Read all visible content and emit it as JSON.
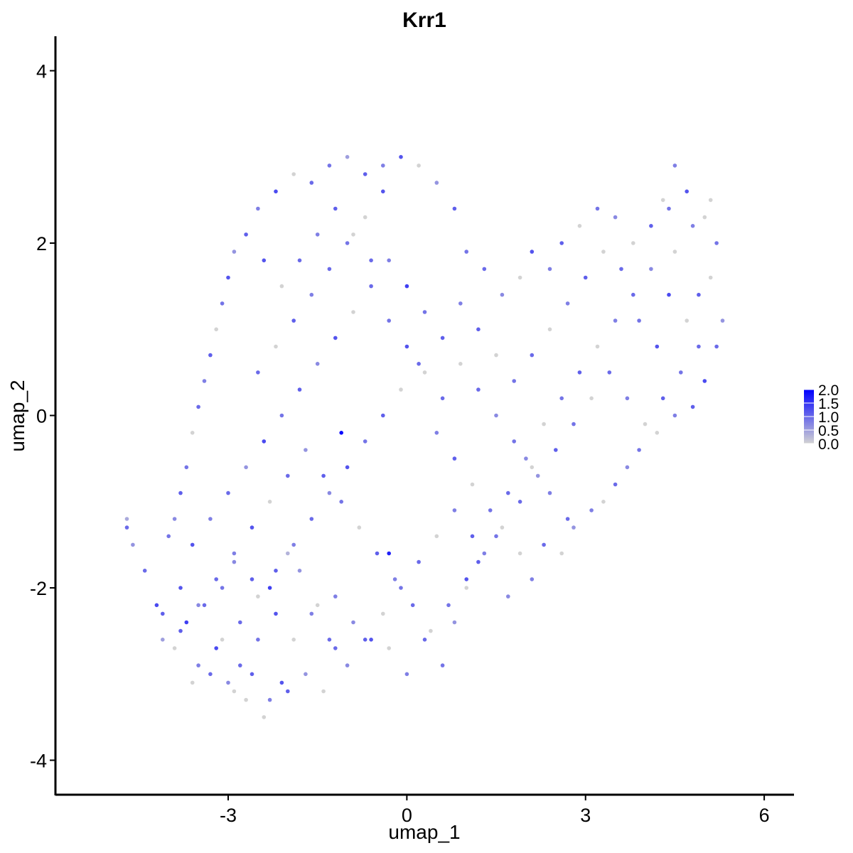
{
  "chart_data": {
    "type": "scatter",
    "title": "Krr1",
    "xlabel": "umap_1",
    "ylabel": "umap_2",
    "xlim": [
      -5.9,
      6.5
    ],
    "ylim": [
      -4.4,
      4.4
    ],
    "x_ticks": [
      -3,
      0,
      3,
      6
    ],
    "x_tick_labels": [
      "-3",
      "0",
      "3",
      "6"
    ],
    "y_ticks": [
      -4,
      -2,
      0,
      2,
      4
    ],
    "y_tick_labels": [
      "-4",
      "-2",
      "0",
      "2",
      "4"
    ],
    "grid": false,
    "legend": {
      "placement": "right",
      "type": "colorbar",
      "min": 0.0,
      "max": 2.0,
      "ticks": [
        0.0,
        0.5,
        1.0,
        1.5,
        2.0
      ],
      "tick_labels": [
        "0.0",
        "0.5",
        "1.0",
        "1.5",
        "2.0"
      ],
      "low_color": "#d3d3d3",
      "high_color": "#0000ff"
    },
    "points": [
      [
        -4.7,
        -1.3,
        1.0
      ],
      [
        -4.6,
        -1.5,
        0.6
      ],
      [
        -4.7,
        -1.2,
        0.4
      ],
      [
        -4.4,
        -1.8,
        1.0
      ],
      [
        -4.2,
        -2.2,
        1.3
      ],
      [
        -4.1,
        -2.3,
        1.1
      ],
      [
        -4.0,
        -1.4,
        0.9
      ],
      [
        -4.1,
        -2.6,
        0.5
      ],
      [
        -3.9,
        -2.7,
        0.0
      ],
      [
        -3.7,
        -2.4,
        1.4
      ],
      [
        -3.8,
        -2.0,
        1.2
      ],
      [
        -3.5,
        -2.9,
        0.8
      ],
      [
        -3.6,
        -3.1,
        0.0
      ],
      [
        -3.3,
        -3.0,
        1.0
      ],
      [
        -3.2,
        -2.7,
        1.3
      ],
      [
        -3.0,
        -3.1,
        0.7
      ],
      [
        -2.9,
        -3.2,
        0.0
      ],
      [
        -2.7,
        -3.3,
        0.0
      ],
      [
        -2.6,
        -3.0,
        1.1
      ],
      [
        -2.4,
        -3.5,
        0.0
      ],
      [
        -2.3,
        -3.3,
        0.8
      ],
      [
        -2.1,
        -3.1,
        1.2
      ],
      [
        -2.0,
        -3.2,
        1.1
      ],
      [
        -1.7,
        -3.0,
        0.6
      ],
      [
        -1.4,
        -3.2,
        0.0
      ],
      [
        -1.2,
        -2.7,
        1.0
      ],
      [
        -3.4,
        -2.2,
        1.0
      ],
      [
        -3.1,
        -2.0,
        0.9
      ],
      [
        -2.9,
        -1.7,
        0.7
      ],
      [
        -2.6,
        -1.9,
        1.1
      ],
      [
        -2.3,
        -2.0,
        1.4
      ],
      [
        -2.0,
        -1.6,
        0.3
      ],
      [
        -1.8,
        -1.8,
        0.6
      ],
      [
        -1.5,
        -2.2,
        0.0
      ],
      [
        -1.2,
        -2.1,
        0.8
      ],
      [
        -0.9,
        -2.4,
        0.7
      ],
      [
        -0.6,
        -2.6,
        1.2
      ],
      [
        -0.3,
        -2.7,
        0.0
      ],
      [
        0.0,
        -3.0,
        0.8
      ],
      [
        0.3,
        -2.6,
        1.0
      ],
      [
        0.6,
        -2.9,
        0.9
      ],
      [
        0.8,
        -2.4,
        0.6
      ],
      [
        1.0,
        -2.0,
        0.0
      ],
      [
        1.2,
        -1.7,
        1.1
      ],
      [
        1.5,
        -1.4,
        0.9
      ],
      [
        1.7,
        -2.1,
        0.7
      ],
      [
        1.9,
        -1.6,
        0.0
      ],
      [
        2.1,
        -1.9,
        0.8
      ],
      [
        2.3,
        -1.5,
        1.0
      ],
      [
        2.6,
        -1.6,
        0.0
      ],
      [
        2.8,
        -1.3,
        0.6
      ],
      [
        3.1,
        -1.1,
        0.8
      ],
      [
        3.3,
        -1.0,
        0.0
      ],
      [
        3.5,
        -0.8,
        1.0
      ],
      [
        3.7,
        -0.6,
        0.7
      ],
      [
        3.9,
        -0.4,
        0.9
      ],
      [
        4.2,
        -0.2,
        0.0
      ],
      [
        4.5,
        0.0,
        0.8
      ],
      [
        4.8,
        0.1,
        1.1
      ],
      [
        5.0,
        0.4,
        1.3
      ],
      [
        5.2,
        0.8,
        1.0
      ],
      [
        5.3,
        1.1,
        0.6
      ],
      [
        5.1,
        1.6,
        0.0
      ],
      [
        5.2,
        2.0,
        0.9
      ],
      [
        5.0,
        2.3,
        0.0
      ],
      [
        4.7,
        2.6,
        1.2
      ],
      [
        4.5,
        2.9,
        0.8
      ],
      [
        4.3,
        2.5,
        0.0
      ],
      [
        4.1,
        2.2,
        1.1
      ],
      [
        3.8,
        2.0,
        0.0
      ],
      [
        3.5,
        2.3,
        0.7
      ],
      [
        3.2,
        2.4,
        0.9
      ],
      [
        2.9,
        2.2,
        0.0
      ],
      [
        2.6,
        2.0,
        1.1
      ],
      [
        2.4,
        1.7,
        0.8
      ],
      [
        2.1,
        1.9,
        1.2
      ],
      [
        1.9,
        1.6,
        0.0
      ],
      [
        1.6,
        1.4,
        0.7
      ],
      [
        1.3,
        1.7,
        1.0
      ],
      [
        1.0,
        1.9,
        0.9
      ],
      [
        0.8,
        2.4,
        1.1
      ],
      [
        0.5,
        2.7,
        0.6
      ],
      [
        0.2,
        2.9,
        0.0
      ],
      [
        -0.1,
        3.0,
        1.2
      ],
      [
        -0.4,
        2.9,
        0.8
      ],
      [
        -0.7,
        2.8,
        1.1
      ],
      [
        -1.0,
        3.0,
        0.5
      ],
      [
        -1.3,
        2.9,
        0.9
      ],
      [
        -1.6,
        2.7,
        1.0
      ],
      [
        -1.9,
        2.8,
        0.0
      ],
      [
        -2.2,
        2.6,
        1.3
      ],
      [
        -2.5,
        2.4,
        0.8
      ],
      [
        -2.7,
        2.1,
        1.1
      ],
      [
        -2.9,
        1.9,
        0.6
      ],
      [
        -3.0,
        1.6,
        1.2
      ],
      [
        -3.1,
        1.3,
        0.9
      ],
      [
        -3.2,
        1.0,
        0.0
      ],
      [
        -3.3,
        0.7,
        1.1
      ],
      [
        -3.4,
        0.4,
        0.8
      ],
      [
        -3.5,
        0.1,
        1.0
      ],
      [
        -3.6,
        -0.2,
        0.0
      ],
      [
        -3.7,
        -0.6,
        0.9
      ],
      [
        -3.8,
        -0.9,
        1.1
      ],
      [
        -3.9,
        -1.2,
        0.7
      ],
      [
        -3.6,
        -1.5,
        1.2
      ],
      [
        -3.3,
        -1.2,
        0.8
      ],
      [
        -3.0,
        -0.9,
        1.0
      ],
      [
        -2.7,
        -0.6,
        0.6
      ],
      [
        -2.4,
        -0.3,
        1.3
      ],
      [
        -2.1,
        0.0,
        0.9
      ],
      [
        -1.8,
        0.3,
        1.1
      ],
      [
        -1.5,
        0.6,
        0.7
      ],
      [
        -1.2,
        0.9,
        1.2
      ],
      [
        -0.9,
        1.2,
        0.0
      ],
      [
        -0.6,
        1.5,
        1.0
      ],
      [
        -0.3,
        1.8,
        0.8
      ],
      [
        0.0,
        1.5,
        1.4
      ],
      [
        0.3,
        1.2,
        0.9
      ],
      [
        0.6,
        0.9,
        1.1
      ],
      [
        0.9,
        0.6,
        0.0
      ],
      [
        1.2,
        0.3,
        1.0
      ],
      [
        1.5,
        0.0,
        0.7
      ],
      [
        1.8,
        -0.3,
        0.9
      ],
      [
        2.1,
        -0.6,
        0.0
      ],
      [
        2.4,
        -0.9,
        0.8
      ],
      [
        2.7,
        -1.2,
        1.0
      ],
      [
        -1.1,
        -0.2,
        1.9
      ],
      [
        -0.3,
        -1.6,
        1.7
      ],
      [
        -2.5,
        0.5,
        1.0
      ],
      [
        -2.2,
        0.8,
        0.0
      ],
      [
        -1.9,
        1.1,
        1.1
      ],
      [
        -1.6,
        1.4,
        0.8
      ],
      [
        -1.3,
        1.7,
        1.0
      ],
      [
        -1.0,
        2.0,
        0.9
      ],
      [
        -0.7,
        2.3,
        0.0
      ],
      [
        -0.4,
        2.6,
        1.2
      ],
      [
        -2.8,
        -2.4,
        1.0
      ],
      [
        -2.5,
        -2.1,
        0.0
      ],
      [
        -2.2,
        -1.8,
        1.1
      ],
      [
        -1.9,
        -1.5,
        0.8
      ],
      [
        -1.6,
        -1.2,
        1.0
      ],
      [
        -1.3,
        -0.9,
        0.7
      ],
      [
        -1.0,
        -0.6,
        1.2
      ],
      [
        -0.7,
        -0.3,
        0.9
      ],
      [
        -0.4,
        0.0,
        1.1
      ],
      [
        -0.1,
        0.3,
        0.0
      ],
      [
        0.2,
        0.6,
        1.0
      ],
      [
        0.5,
        -0.2,
        0.8
      ],
      [
        0.8,
        -0.5,
        1.1
      ],
      [
        1.1,
        -0.8,
        0.0
      ],
      [
        1.4,
        -1.1,
        0.9
      ],
      [
        1.7,
        -0.9,
        1.0
      ],
      [
        2.0,
        -0.5,
        0.7
      ],
      [
        2.3,
        -0.1,
        0.0
      ],
      [
        2.6,
        0.2,
        0.9
      ],
      [
        2.9,
        0.5,
        1.1
      ],
      [
        3.2,
        0.8,
        0.0
      ],
      [
        3.5,
        1.1,
        0.8
      ],
      [
        3.8,
        1.4,
        1.0
      ],
      [
        4.1,
        1.7,
        0.7
      ],
      [
        4.4,
        1.4,
        1.3
      ],
      [
        4.7,
        1.1,
        0.0
      ],
      [
        4.9,
        0.8,
        1.0
      ],
      [
        4.6,
        0.5,
        0.9
      ],
      [
        4.3,
        0.2,
        1.1
      ],
      [
        4.0,
        -0.1,
        0.0
      ],
      [
        3.7,
        0.2,
        0.8
      ],
      [
        3.4,
        0.5,
        1.0
      ],
      [
        3.1,
        0.2,
        0.0
      ],
      [
        2.8,
        -0.1,
        0.9
      ],
      [
        2.5,
        -0.4,
        1.1
      ],
      [
        2.2,
        -0.7,
        0.6
      ],
      [
        1.9,
        -1.0,
        1.0
      ],
      [
        1.6,
        -1.3,
        0.0
      ],
      [
        1.3,
        -1.6,
        0.8
      ],
      [
        1.0,
        -1.9,
        1.2
      ],
      [
        0.7,
        -2.2,
        0.9
      ],
      [
        0.4,
        -2.5,
        0.0
      ],
      [
        0.1,
        -2.2,
        1.0
      ],
      [
        -0.2,
        -1.9,
        0.8
      ],
      [
        -0.5,
        -1.6,
        1.1
      ],
      [
        -0.8,
        -1.3,
        0.0
      ],
      [
        -1.1,
        -1.0,
        0.9
      ],
      [
        -1.4,
        -0.7,
        1.1
      ],
      [
        -1.7,
        -0.4,
        0.6
      ],
      [
        -2.0,
        -0.7,
        1.0
      ],
      [
        -2.3,
        -1.0,
        0.0
      ],
      [
        -2.6,
        -1.3,
        1.2
      ],
      [
        -2.9,
        -1.6,
        0.8
      ],
      [
        -3.2,
        -1.9,
        1.0
      ],
      [
        -3.5,
        -2.2,
        0.7
      ],
      [
        -3.8,
        -2.5,
        1.1
      ],
      [
        -3.1,
        -2.6,
        0.0
      ],
      [
        -2.8,
        -2.9,
        1.0
      ],
      [
        -2.5,
        -2.6,
        0.9
      ],
      [
        -2.2,
        -2.3,
        1.2
      ],
      [
        -1.9,
        -2.6,
        0.0
      ],
      [
        -1.6,
        -2.3,
        0.8
      ],
      [
        -1.3,
        -2.6,
        1.0
      ],
      [
        -1.0,
        -2.9,
        0.7
      ],
      [
        -0.7,
        -2.6,
        1.1
      ],
      [
        -0.4,
        -2.3,
        0.0
      ],
      [
        -0.1,
        -2.0,
        0.9
      ],
      [
        0.2,
        -1.7,
        1.0
      ],
      [
        0.5,
        -1.4,
        0.0
      ],
      [
        0.8,
        -1.1,
        0.8
      ],
      [
        1.1,
        -1.4,
        1.1
      ],
      [
        -2.4,
        1.8,
        1.2
      ],
      [
        -2.1,
        1.5,
        0.0
      ],
      [
        -1.8,
        1.8,
        1.0
      ],
      [
        -1.5,
        2.1,
        0.8
      ],
      [
        -1.2,
        2.4,
        1.1
      ],
      [
        -0.9,
        2.1,
        0.0
      ],
      [
        -0.6,
        1.8,
        1.0
      ],
      [
        -0.3,
        1.1,
        0.9
      ],
      [
        0.0,
        0.8,
        1.2
      ],
      [
        0.3,
        0.5,
        0.0
      ],
      [
        0.6,
        0.2,
        1.0
      ],
      [
        0.9,
        1.3,
        0.8
      ],
      [
        1.2,
        1.0,
        1.1
      ],
      [
        1.5,
        0.7,
        0.0
      ],
      [
        1.8,
        0.4,
        0.9
      ],
      [
        2.1,
        0.7,
        1.0
      ],
      [
        2.4,
        1.0,
        0.0
      ],
      [
        2.7,
        1.3,
        0.8
      ],
      [
        3.0,
        1.6,
        1.1
      ],
      [
        3.3,
        1.9,
        0.0
      ],
      [
        3.6,
        1.7,
        1.0
      ],
      [
        3.9,
        1.1,
        0.9
      ],
      [
        4.2,
        0.8,
        1.2
      ],
      [
        4.5,
        1.9,
        0.0
      ],
      [
        4.8,
        2.2,
        0.8
      ],
      [
        5.1,
        2.5,
        0.0
      ],
      [
        4.9,
        1.4,
        1.1
      ],
      [
        4.4,
        2.4,
        0.9
      ]
    ]
  }
}
